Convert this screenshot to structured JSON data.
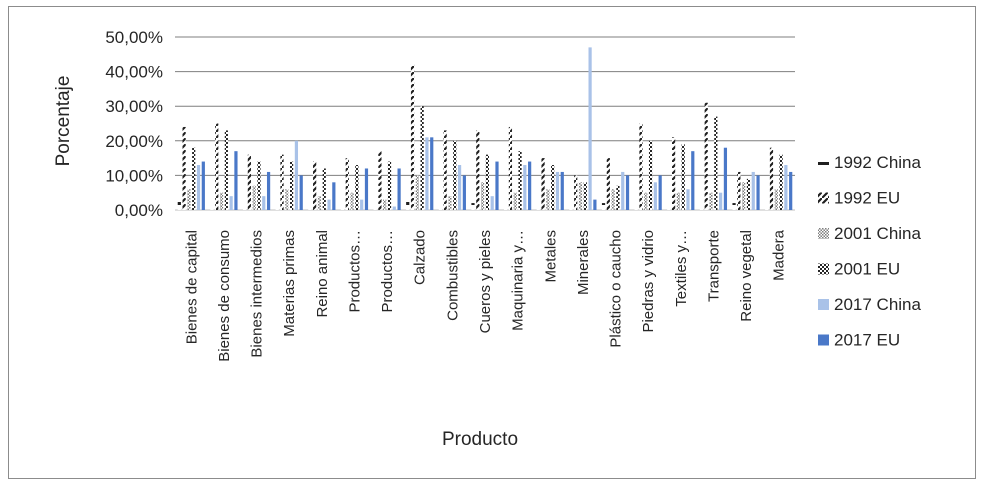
{
  "chart_data": {
    "type": "bar",
    "title": "",
    "xlabel": "Producto",
    "ylabel": "Porcentaje",
    "ylim": [
      0,
      0.5
    ],
    "yticks": [
      "0,00%",
      "10,00%",
      "20,00%",
      "30,00%",
      "40,00%",
      "50,00%"
    ],
    "grid": true,
    "legend_position": "right",
    "categories": [
      "Bienes de capital",
      "Bienes de consumo",
      "Bienes intermedios",
      "Materias primas",
      "Reino animal",
      "Productos…",
      "Productos…",
      "Calzado",
      "Combustibles",
      "Cueros y pieles",
      "Maquinaria y…",
      "Metales",
      "Minerales",
      "Plástico o caucho",
      "Piedras y vidrio",
      "Textiles y…",
      "Transporte",
      "Reino vegetal",
      "Madera"
    ],
    "series": [
      {
        "name": "1992 China",
        "color": "#1f1f1f",
        "pattern": "dash",
        "values": [
          0.03,
          0.01,
          0.01,
          0.01,
          0.01,
          0.01,
          0.01,
          0.03,
          0.01,
          0.02,
          0.01,
          0.01,
          0.01,
          0.02,
          0.01,
          0.01,
          0.01,
          0.02,
          0.01
        ]
      },
      {
        "name": "1992 EU",
        "color": "#1f1f1f",
        "pattern": "dash-diag",
        "values": [
          0.24,
          0.25,
          0.16,
          0.16,
          0.14,
          0.15,
          0.17,
          0.42,
          0.23,
          0.23,
          0.24,
          0.15,
          0.1,
          0.15,
          0.25,
          0.21,
          0.31,
          0.11,
          0.18
        ]
      },
      {
        "name": "2001 China",
        "color": "#7f7f7f",
        "pattern": "dots",
        "values": [
          0.06,
          0.05,
          0.07,
          0.06,
          0.04,
          0.05,
          0.03,
          0.1,
          0.04,
          0.08,
          0.05,
          0.06,
          0.08,
          0.06,
          0.05,
          0.05,
          0.05,
          0.08,
          0.06
        ]
      },
      {
        "name": "2001 EU",
        "color": "#262626",
        "pattern": "checker",
        "values": [
          0.18,
          0.23,
          0.14,
          0.14,
          0.12,
          0.13,
          0.14,
          0.3,
          0.2,
          0.16,
          0.17,
          0.13,
          0.08,
          0.07,
          0.2,
          0.19,
          0.27,
          0.09,
          0.16
        ]
      },
      {
        "name": "2017 China",
        "color": "#a9c2e8",
        "pattern": "solid",
        "values": [
          0.13,
          0.04,
          0.04,
          0.2,
          0.03,
          0.03,
          0.01,
          0.21,
          0.13,
          0.04,
          0.13,
          0.11,
          0.47,
          0.11,
          0.08,
          0.06,
          0.05,
          0.11,
          0.13
        ]
      },
      {
        "name": "2017 EU",
        "color": "#4a78c8",
        "pattern": "solid",
        "values": [
          0.14,
          0.17,
          0.11,
          0.1,
          0.08,
          0.12,
          0.12,
          0.21,
          0.1,
          0.14,
          0.14,
          0.11,
          0.03,
          0.1,
          0.1,
          0.17,
          0.18,
          0.1,
          0.11
        ]
      }
    ]
  }
}
